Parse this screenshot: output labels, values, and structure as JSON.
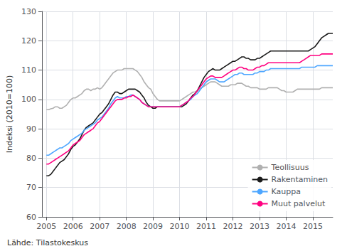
{
  "chart_data": {
    "type": "line",
    "ylabel": "Indeksi (2010=100)",
    "annotations": [
      "Lähde: Tilastokeskus"
    ],
    "ylim": [
      60,
      130
    ],
    "yticks": [
      60,
      70,
      80,
      90,
      100,
      110,
      120,
      130
    ],
    "xlim": [
      2004.83,
      2015.75
    ],
    "xticks": [
      2005,
      2006,
      2007,
      2008,
      2009,
      2010,
      2011,
      2012,
      2013,
      2014,
      2015
    ],
    "grid": true,
    "legend": "lower right",
    "x": [
      2005.0,
      2005.083,
      2005.167,
      2005.25,
      2005.333,
      2005.417,
      2005.5,
      2005.583,
      2005.667,
      2005.75,
      2005.833,
      2005.917,
      2006.0,
      2006.083,
      2006.167,
      2006.25,
      2006.333,
      2006.417,
      2006.5,
      2006.583,
      2006.667,
      2006.75,
      2006.833,
      2006.917,
      2007.0,
      2007.083,
      2007.167,
      2007.25,
      2007.333,
      2007.417,
      2007.5,
      2007.583,
      2007.667,
      2007.75,
      2007.833,
      2007.917,
      2008.0,
      2008.083,
      2008.167,
      2008.25,
      2008.333,
      2008.417,
      2008.5,
      2008.583,
      2008.667,
      2008.75,
      2008.833,
      2008.917,
      2009.0,
      2009.083,
      2009.167,
      2009.25,
      2009.333,
      2009.417,
      2009.5,
      2009.583,
      2009.667,
      2009.75,
      2009.833,
      2009.917,
      2010.0,
      2010.083,
      2010.167,
      2010.25,
      2010.333,
      2010.417,
      2010.5,
      2010.583,
      2010.667,
      2010.75,
      2010.833,
      2010.917,
      2011.0,
      2011.083,
      2011.167,
      2011.25,
      2011.333,
      2011.417,
      2011.5,
      2011.583,
      2011.667,
      2011.75,
      2011.833,
      2011.917,
      2012.0,
      2012.083,
      2012.167,
      2012.25,
      2012.333,
      2012.417,
      2012.5,
      2012.583,
      2012.667,
      2012.75,
      2012.833,
      2012.917,
      2013.0,
      2013.083,
      2013.167,
      2013.25,
      2013.333,
      2013.417,
      2013.5,
      2013.583,
      2013.667,
      2013.75,
      2013.833,
      2013.917,
      2014.0,
      2014.083,
      2014.167,
      2014.25,
      2014.333,
      2014.417,
      2014.5,
      2014.583,
      2014.667,
      2014.75,
      2014.833,
      2014.917,
      2015.0,
      2015.083,
      2015.167,
      2015.25,
      2015.333,
      2015.417,
      2015.5,
      2015.583,
      2015.667,
      2015.75
    ],
    "series": [
      {
        "name": "Teollisuus",
        "color": "#b0b0b0",
        "values": [
          96.5,
          96.5,
          96.8,
          97.0,
          97.5,
          97.5,
          97.0,
          97.0,
          97.5,
          98.0,
          99.0,
          100.0,
          100.5,
          100.5,
          101.0,
          101.5,
          102.0,
          103.0,
          103.5,
          103.5,
          103.0,
          103.5,
          103.5,
          104.0,
          103.5,
          104.0,
          105.0,
          106.0,
          107.0,
          108.0,
          109.0,
          109.5,
          110.0,
          110.0,
          110.0,
          110.5,
          110.5,
          110.5,
          110.5,
          110.5,
          110.0,
          109.5,
          108.5,
          107.5,
          106.0,
          105.0,
          104.0,
          103.5,
          102.0,
          101.0,
          100.0,
          99.5,
          99.5,
          99.5,
          99.5,
          99.5,
          99.5,
          99.5,
          99.5,
          99.5,
          99.5,
          100.0,
          100.5,
          101.0,
          101.5,
          102.0,
          102.5,
          102.5,
          103.0,
          103.5,
          104.0,
          104.5,
          105.0,
          105.5,
          106.0,
          106.0,
          106.0,
          105.5,
          105.0,
          104.5,
          104.5,
          104.5,
          104.5,
          105.0,
          105.0,
          105.0,
          105.5,
          105.5,
          105.5,
          105.0,
          104.5,
          104.5,
          104.0,
          104.0,
          104.0,
          104.0,
          103.5,
          103.5,
          103.5,
          103.5,
          104.0,
          104.0,
          104.0,
          104.0,
          104.0,
          103.5,
          103.0,
          103.0,
          102.5,
          102.5,
          102.5,
          102.5,
          103.0,
          103.5,
          103.5,
          103.5,
          103.5,
          103.5,
          103.5,
          103.5,
          103.5,
          103.5,
          103.5,
          103.5,
          104.0,
          104.0,
          104.0,
          104.0,
          104.0,
          104.0
        ]
      },
      {
        "name": "Rakentaminen",
        "color": "#1a1a1a",
        "values": [
          74.0,
          74.0,
          74.5,
          75.5,
          76.5,
          77.5,
          78.5,
          79.0,
          79.5,
          80.5,
          81.5,
          83.0,
          84.0,
          84.5,
          85.5,
          86.5,
          88.0,
          89.5,
          90.5,
          91.0,
          91.5,
          92.0,
          93.0,
          94.0,
          95.0,
          95.5,
          96.5,
          97.5,
          98.5,
          100.0,
          101.5,
          102.5,
          102.5,
          102.0,
          102.0,
          102.5,
          103.0,
          103.5,
          103.5,
          103.5,
          103.5,
          103.0,
          102.5,
          101.5,
          100.5,
          99.0,
          98.0,
          97.5,
          97.0,
          97.0,
          97.5,
          97.5,
          97.5,
          97.5,
          97.5,
          97.5,
          97.5,
          97.5,
          97.5,
          97.5,
          97.5,
          97.5,
          98.0,
          98.5,
          99.5,
          100.5,
          101.5,
          102.0,
          103.0,
          104.5,
          106.0,
          107.5,
          108.5,
          109.5,
          110.0,
          110.5,
          110.0,
          110.0,
          110.0,
          110.5,
          111.0,
          111.5,
          112.0,
          112.5,
          113.0,
          113.0,
          113.5,
          114.0,
          114.5,
          114.5,
          114.0,
          114.0,
          113.5,
          113.5,
          113.5,
          114.0,
          114.0,
          114.5,
          115.0,
          115.5,
          116.0,
          116.5,
          116.5,
          116.5,
          116.5,
          116.5,
          116.5,
          116.5,
          116.5,
          116.5,
          116.5,
          116.5,
          116.5,
          116.5,
          116.5,
          116.5,
          116.5,
          116.5,
          116.5,
          117.0,
          117.5,
          118.0,
          119.0,
          120.0,
          121.0,
          121.5,
          122.0,
          122.5,
          122.5,
          122.5
        ]
      },
      {
        "name": "Kauppa",
        "color": "#4da6ff",
        "values": [
          81.0,
          81.0,
          81.5,
          82.0,
          82.5,
          83.0,
          83.5,
          83.5,
          84.0,
          84.5,
          85.0,
          86.0,
          86.5,
          87.0,
          87.5,
          88.0,
          88.5,
          89.5,
          90.0,
          90.5,
          91.0,
          91.5,
          92.0,
          93.0,
          93.5,
          94.0,
          95.0,
          96.0,
          97.0,
          98.5,
          99.5,
          100.5,
          101.0,
          100.5,
          100.5,
          100.5,
          101.0,
          101.0,
          101.5,
          101.5,
          101.0,
          100.5,
          100.0,
          99.0,
          98.5,
          98.0,
          97.5,
          97.5,
          97.5,
          97.5,
          97.5,
          97.5,
          97.5,
          97.5,
          97.5,
          97.5,
          97.5,
          97.5,
          97.5,
          97.5,
          97.5,
          98.0,
          98.5,
          99.0,
          99.5,
          100.0,
          101.0,
          101.5,
          102.0,
          103.0,
          104.0,
          105.0,
          106.0,
          106.5,
          107.0,
          107.0,
          107.0,
          106.5,
          106.0,
          106.0,
          106.0,
          106.5,
          107.0,
          107.5,
          108.0,
          108.5,
          108.5,
          109.0,
          109.0,
          108.5,
          108.5,
          108.5,
          108.5,
          108.5,
          109.0,
          109.0,
          109.5,
          109.5,
          109.5,
          110.0,
          110.0,
          110.5,
          110.5,
          110.5,
          110.5,
          110.5,
          110.5,
          110.5,
          110.5,
          110.5,
          110.5,
          110.5,
          110.5,
          110.5,
          110.5,
          111.0,
          111.0,
          111.0,
          111.0,
          111.0,
          111.0,
          111.0,
          111.5,
          111.5,
          111.5,
          111.5,
          111.5,
          111.5,
          111.5,
          111.5
        ]
      },
      {
        "name": "Muut palvelut",
        "color": "#ff0080",
        "values": [
          78.0,
          78.0,
          78.5,
          79.0,
          79.5,
          80.0,
          80.5,
          81.0,
          81.5,
          82.0,
          82.5,
          83.5,
          84.5,
          85.0,
          85.5,
          86.0,
          87.0,
          88.0,
          88.5,
          89.0,
          89.5,
          90.0,
          91.0,
          92.0,
          92.5,
          93.5,
          94.5,
          95.5,
          96.5,
          97.5,
          98.5,
          99.5,
          100.0,
          100.0,
          100.0,
          100.5,
          100.5,
          101.0,
          101.0,
          101.5,
          101.0,
          100.5,
          100.0,
          99.0,
          98.5,
          98.0,
          97.5,
          97.5,
          97.5,
          97.5,
          97.5,
          97.5,
          97.5,
          97.5,
          97.5,
          97.5,
          97.5,
          97.5,
          97.5,
          97.5,
          97.5,
          98.0,
          98.5,
          99.0,
          99.5,
          100.5,
          101.0,
          102.0,
          103.0,
          104.0,
          105.0,
          106.0,
          107.0,
          107.5,
          108.0,
          108.0,
          107.5,
          107.5,
          107.5,
          107.5,
          108.0,
          108.5,
          109.0,
          109.5,
          110.0,
          110.0,
          110.5,
          111.0,
          111.0,
          110.5,
          110.5,
          110.0,
          110.0,
          110.0,
          110.5,
          111.0,
          111.0,
          111.5,
          111.5,
          112.0,
          112.5,
          112.5,
          112.5,
          112.5,
          112.5,
          112.5,
          112.5,
          112.5,
          112.5,
          112.5,
          112.5,
          112.5,
          112.5,
          112.5,
          112.5,
          113.0,
          113.5,
          114.0,
          114.5,
          115.0,
          115.0,
          115.0,
          115.0,
          115.0,
          115.5,
          115.5,
          115.5,
          115.5,
          115.5,
          115.5
        ]
      }
    ]
  }
}
